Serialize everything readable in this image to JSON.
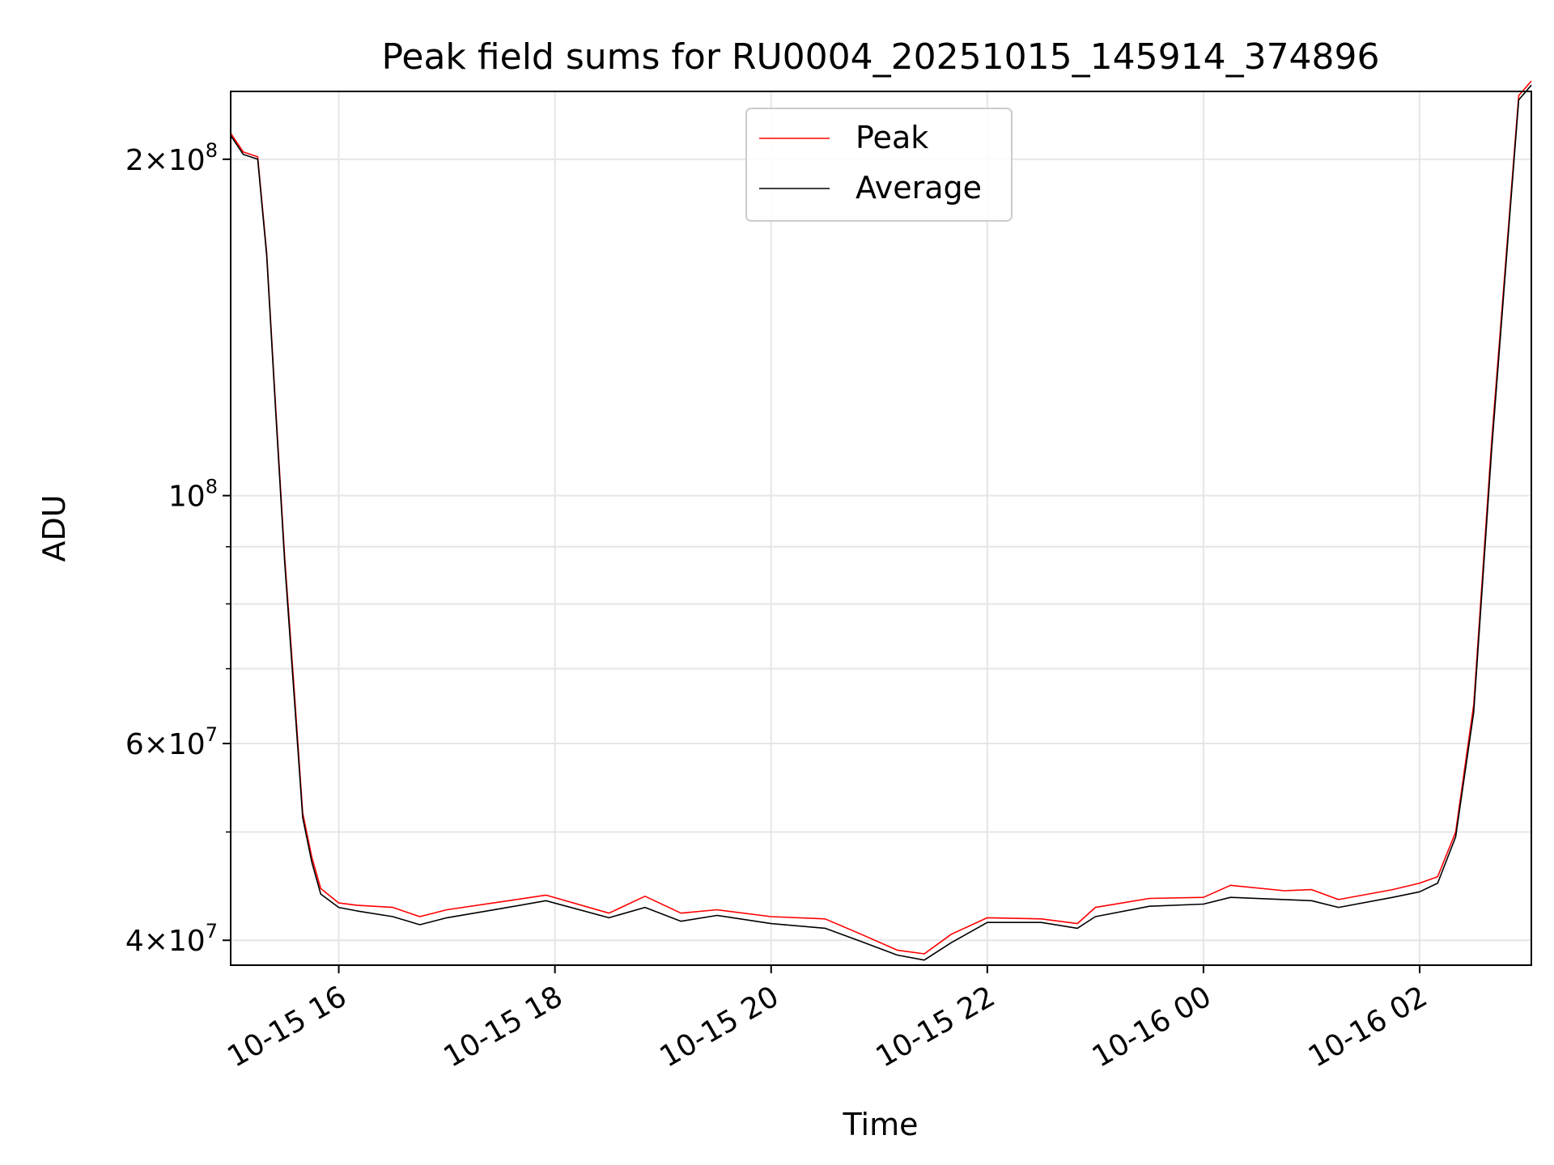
{
  "chart_data": {
    "type": "line",
    "title": "Peak field sums for RU0004_20251015_145914_374896",
    "xlabel": "Time",
    "ylabel": "ADU",
    "yscale": "log",
    "ylim": [
      38000000,
      230000000
    ],
    "xlim": [
      "2025-10-15T15:00",
      "2025-10-16T03:02"
    ],
    "grid": true,
    "legend_location": "upper center",
    "x_ticks": [
      {
        "label": "10-15 16",
        "t": "2025-10-15T16:00"
      },
      {
        "label": "10-15 18",
        "t": "2025-10-15T18:00"
      },
      {
        "label": "10-15 20",
        "t": "2025-10-15T20:00"
      },
      {
        "label": "10-15 22",
        "t": "2025-10-15T22:00"
      },
      {
        "label": "10-16 00",
        "t": "2025-10-16T00:00"
      },
      {
        "label": "10-16 02",
        "t": "2025-10-16T02:00"
      }
    ],
    "y_ticks": [
      {
        "value": 200000000,
        "base": "2×10",
        "exp": "8"
      },
      {
        "value": 100000000,
        "base": "10",
        "exp": "8"
      },
      {
        "value": 60000000,
        "base": "6×10",
        "exp": "7"
      },
      {
        "value": 40000000,
        "base": "4×10",
        "exp": "7"
      }
    ],
    "y_minor_ticks": [
      90000000,
      80000000,
      70000000,
      50000000
    ],
    "series": [
      {
        "name": "Peak",
        "color": "#ff0000",
        "points": [
          [
            "2025-10-15T15:00",
            211000000
          ],
          [
            "2025-10-15T15:07",
            203000000
          ],
          [
            "2025-10-15T15:15",
            201000000
          ],
          [
            "2025-10-15T15:20",
            165000000
          ],
          [
            "2025-10-15T15:25",
            120000000
          ],
          [
            "2025-10-15T15:30",
            88000000
          ],
          [
            "2025-10-15T15:35",
            68000000
          ],
          [
            "2025-10-15T15:40",
            52000000
          ],
          [
            "2025-10-15T15:45",
            47500000
          ],
          [
            "2025-10-15T15:50",
            44500000
          ],
          [
            "2025-10-15T16:00",
            43200000
          ],
          [
            "2025-10-15T16:10",
            43000000
          ],
          [
            "2025-10-15T16:30",
            42800000
          ],
          [
            "2025-10-15T16:45",
            42000000
          ],
          [
            "2025-10-15T17:00",
            42600000
          ],
          [
            "2025-10-15T17:30",
            43300000
          ],
          [
            "2025-10-15T17:55",
            43900000
          ],
          [
            "2025-10-15T18:30",
            42300000
          ],
          [
            "2025-10-15T18:50",
            43800000
          ],
          [
            "2025-10-15T19:10",
            42300000
          ],
          [
            "2025-10-15T19:30",
            42600000
          ],
          [
            "2025-10-15T20:00",
            42000000
          ],
          [
            "2025-10-15T20:30",
            41800000
          ],
          [
            "2025-10-15T20:50",
            40500000
          ],
          [
            "2025-10-15T21:10",
            39200000
          ],
          [
            "2025-10-15T21:25",
            38900000
          ],
          [
            "2025-10-15T21:40",
            40500000
          ],
          [
            "2025-10-15T22:00",
            41900000
          ],
          [
            "2025-10-15T22:30",
            41800000
          ],
          [
            "2025-10-15T22:50",
            41400000
          ],
          [
            "2025-10-15T23:00",
            42800000
          ],
          [
            "2025-10-15T23:30",
            43600000
          ],
          [
            "2025-10-16T00:00",
            43700000
          ],
          [
            "2025-10-16T00:15",
            44800000
          ],
          [
            "2025-10-16T00:45",
            44300000
          ],
          [
            "2025-10-16T01:00",
            44400000
          ],
          [
            "2025-10-16T01:15",
            43500000
          ],
          [
            "2025-10-16T01:45",
            44400000
          ],
          [
            "2025-10-16T02:00",
            45000000
          ],
          [
            "2025-10-16T02:10",
            45600000
          ],
          [
            "2025-10-16T02:20",
            50000000
          ],
          [
            "2025-10-16T02:30",
            65000000
          ],
          [
            "2025-10-16T02:40",
            112000000
          ],
          [
            "2025-10-16T02:50",
            180000000
          ],
          [
            "2025-10-16T02:55",
            228000000
          ],
          [
            "2025-10-16T03:02",
            235000000
          ]
        ]
      },
      {
        "name": "Average",
        "color": "#000000",
        "points": [
          [
            "2025-10-15T15:00",
            210000000
          ],
          [
            "2025-10-15T15:07",
            202000000
          ],
          [
            "2025-10-15T15:15",
            200000000
          ],
          [
            "2025-10-15T15:20",
            164000000
          ],
          [
            "2025-10-15T15:25",
            119000000
          ],
          [
            "2025-10-15T15:30",
            87000000
          ],
          [
            "2025-10-15T15:35",
            67000000
          ],
          [
            "2025-10-15T15:40",
            51500000
          ],
          [
            "2025-10-15T15:45",
            47000000
          ],
          [
            "2025-10-15T15:50",
            44000000
          ],
          [
            "2025-10-15T16:00",
            42800000
          ],
          [
            "2025-10-15T16:10",
            42500000
          ],
          [
            "2025-10-15T16:30",
            42000000
          ],
          [
            "2025-10-15T16:45",
            41300000
          ],
          [
            "2025-10-15T17:00",
            41900000
          ],
          [
            "2025-10-15T17:30",
            42700000
          ],
          [
            "2025-10-15T17:55",
            43400000
          ],
          [
            "2025-10-15T18:30",
            41900000
          ],
          [
            "2025-10-15T18:50",
            42800000
          ],
          [
            "2025-10-15T19:10",
            41600000
          ],
          [
            "2025-10-15T19:30",
            42100000
          ],
          [
            "2025-10-15T20:00",
            41400000
          ],
          [
            "2025-10-15T20:30",
            41000000
          ],
          [
            "2025-10-15T20:50",
            39900000
          ],
          [
            "2025-10-15T21:10",
            38800000
          ],
          [
            "2025-10-15T21:25",
            38400000
          ],
          [
            "2025-10-15T21:40",
            39800000
          ],
          [
            "2025-10-15T22:00",
            41500000
          ],
          [
            "2025-10-15T22:30",
            41500000
          ],
          [
            "2025-10-15T22:50",
            41000000
          ],
          [
            "2025-10-15T23:00",
            42000000
          ],
          [
            "2025-10-15T23:30",
            42900000
          ],
          [
            "2025-10-16T00:00",
            43100000
          ],
          [
            "2025-10-16T00:15",
            43700000
          ],
          [
            "2025-10-16T00:45",
            43500000
          ],
          [
            "2025-10-16T01:00",
            43400000
          ],
          [
            "2025-10-16T01:15",
            42800000
          ],
          [
            "2025-10-16T01:45",
            43700000
          ],
          [
            "2025-10-16T02:00",
            44200000
          ],
          [
            "2025-10-16T02:10",
            45000000
          ],
          [
            "2025-10-16T02:20",
            49500000
          ],
          [
            "2025-10-16T02:30",
            64000000
          ],
          [
            "2025-10-16T02:40",
            110000000
          ],
          [
            "2025-10-16T02:50",
            178000000
          ],
          [
            "2025-10-16T02:55",
            226000000
          ],
          [
            "2025-10-16T03:02",
            233000000
          ]
        ]
      }
    ]
  }
}
